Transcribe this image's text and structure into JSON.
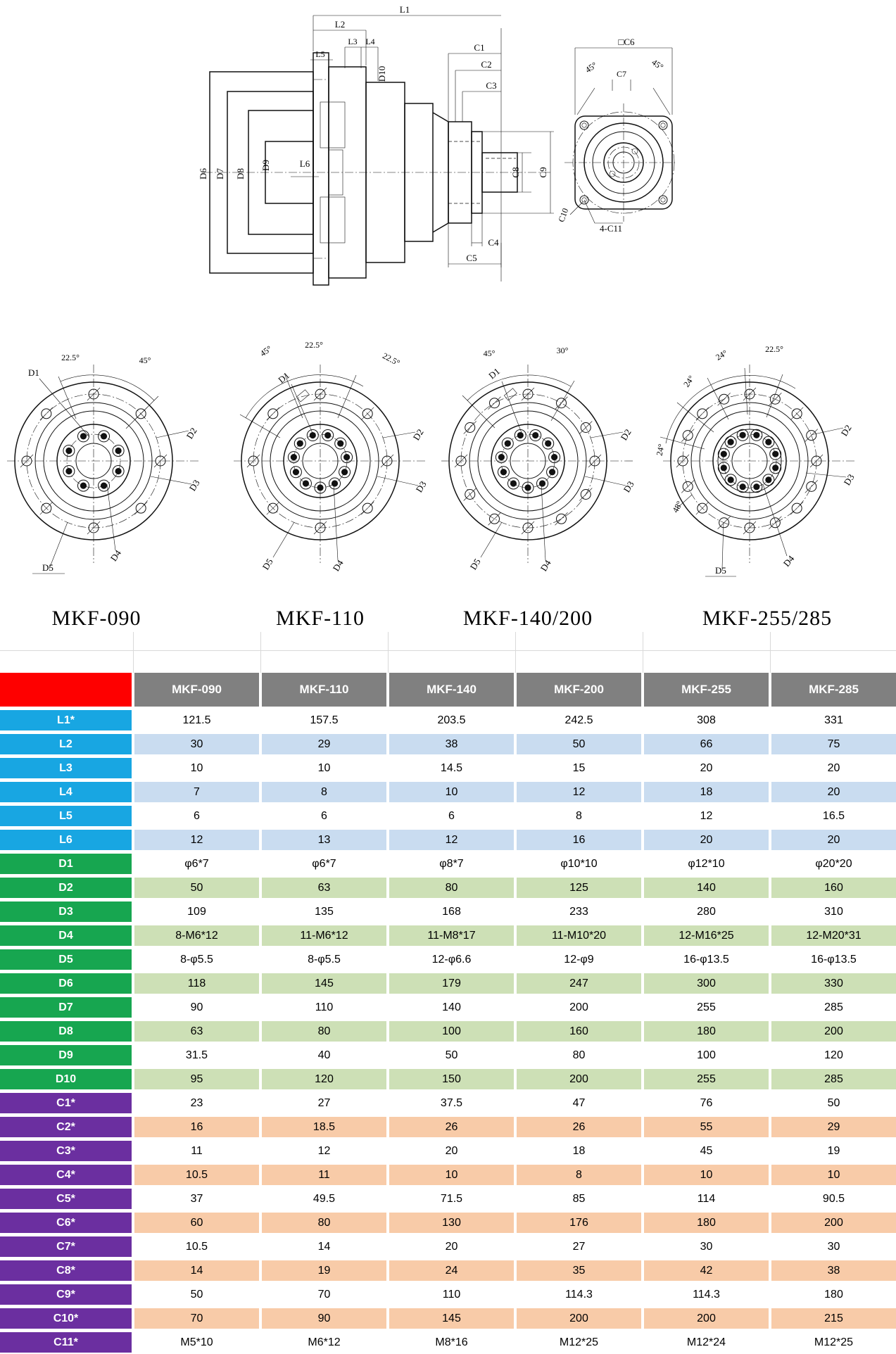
{
  "drawings": {
    "side": {
      "L1": "L1",
      "L2": "L2",
      "L3": "L3",
      "L4": "L4",
      "L5": "L5",
      "L6": "L6",
      "D6": "D6",
      "D7": "D7",
      "D8": "D8",
      "D9": "D9",
      "D10": "D10",
      "C1": "C1",
      "C2": "C2",
      "C3": "C3",
      "C4": "C4",
      "C5": "C5",
      "C8": "C8",
      "C9": "C9"
    },
    "front_small": {
      "C6": "□C6",
      "angle_left": "45°",
      "angle_right": "45°",
      "C7": "C7",
      "C10": "C10",
      "C11": "4-C11"
    },
    "views": [
      {
        "name": "MKF-090",
        "angles": [
          "22.5°",
          "45°"
        ],
        "labels": [
          "D1",
          "D2",
          "D3",
          "D4",
          "D5"
        ],
        "outer_holes": 8,
        "inner_holes": 8
      },
      {
        "name": "MKF-110",
        "angles": [
          "45°",
          "22.5°",
          "22.5°"
        ],
        "labels": [
          "D1",
          "D2",
          "D3",
          "D4",
          "D5"
        ],
        "outer_holes": 8,
        "inner_holes": 11
      },
      {
        "name": "MKF-140/200",
        "angles": [
          "45°",
          "30°"
        ],
        "labels": [
          "D1",
          "D2",
          "D3",
          "D4",
          "D5"
        ],
        "outer_holes": 12,
        "inner_holes": 11
      },
      {
        "name": "MKF-255/285",
        "angles": [
          "24°",
          "24°",
          "22.5°",
          "24°",
          "48°"
        ],
        "labels": [
          "D1",
          "D2",
          "D3",
          "D4",
          "D5"
        ],
        "outer_holes": 16,
        "inner_holes": 12
      }
    ]
  },
  "table": {
    "columns": [
      "MKF-090",
      "MKF-110",
      "MKF-140",
      "MKF-200",
      "MKF-255",
      "MKF-285"
    ],
    "colors": {
      "header_bg": "#808080",
      "header_text": "#ffffff",
      "corner_bg": "#FE0000",
      "l_label_bg": "#18A6E2",
      "l_tint": "#C9DCF0",
      "d_label_bg": "#17A650",
      "d_tint": "#CDE0B6",
      "c_label_bg": "#6B2FA0",
      "c_tint": "#F8CBA8"
    },
    "rows": [
      {
        "label": "L1*",
        "values": [
          "121.5",
          "157.5",
          "203.5",
          "242.5",
          "308",
          "331"
        ]
      },
      {
        "label": "L2",
        "values": [
          "30",
          "29",
          "38",
          "50",
          "66",
          "75"
        ]
      },
      {
        "label": "L3",
        "values": [
          "10",
          "10",
          "14.5",
          "15",
          "20",
          "20"
        ]
      },
      {
        "label": "L4",
        "values": [
          "7",
          "8",
          "10",
          "12",
          "18",
          "20"
        ]
      },
      {
        "label": "L5",
        "values": [
          "6",
          "6",
          "6",
          "8",
          "12",
          "16.5"
        ]
      },
      {
        "label": "L6",
        "values": [
          "12",
          "13",
          "12",
          "16",
          "20",
          "20"
        ]
      },
      {
        "label": "D1",
        "values": [
          "φ6*7",
          "φ6*7",
          "φ8*7",
          "φ10*10",
          "φ12*10",
          "φ20*20"
        ]
      },
      {
        "label": "D2",
        "values": [
          "50",
          "63",
          "80",
          "125",
          "140",
          "160"
        ]
      },
      {
        "label": "D3",
        "values": [
          "109",
          "135",
          "168",
          "233",
          "280",
          "310"
        ]
      },
      {
        "label": "D4",
        "values": [
          "8-M6*12",
          "11-M6*12",
          "11-M8*17",
          "11-M10*20",
          "12-M16*25",
          "12-M20*31"
        ]
      },
      {
        "label": "D5",
        "values": [
          "8-φ5.5",
          "8-φ5.5",
          "12-φ6.6",
          "12-φ9",
          "16-φ13.5",
          "16-φ13.5"
        ]
      },
      {
        "label": "D6",
        "values": [
          "118",
          "145",
          "179",
          "247",
          "300",
          "330"
        ]
      },
      {
        "label": "D7",
        "values": [
          "90",
          "110",
          "140",
          "200",
          "255",
          "285"
        ]
      },
      {
        "label": "D8",
        "values": [
          "63",
          "80",
          "100",
          "160",
          "180",
          "200"
        ]
      },
      {
        "label": "D9",
        "values": [
          "31.5",
          "40",
          "50",
          "80",
          "100",
          "120"
        ]
      },
      {
        "label": "D10",
        "values": [
          "95",
          "120",
          "150",
          "200",
          "255",
          "285"
        ]
      },
      {
        "label": "C1*",
        "values": [
          "23",
          "27",
          "37.5",
          "47",
          "76",
          "50"
        ]
      },
      {
        "label": "C2*",
        "values": [
          "16",
          "18.5",
          "26",
          "26",
          "55",
          "29"
        ]
      },
      {
        "label": "C3*",
        "values": [
          "11",
          "12",
          "20",
          "18",
          "45",
          "19"
        ]
      },
      {
        "label": "C4*",
        "values": [
          "10.5",
          "11",
          "10",
          "8",
          "10",
          "10"
        ]
      },
      {
        "label": "C5*",
        "values": [
          "37",
          "49.5",
          "71.5",
          "85",
          "114",
          "90.5"
        ]
      },
      {
        "label": "C6*",
        "values": [
          "60",
          "80",
          "130",
          "176",
          "180",
          "200"
        ]
      },
      {
        "label": "C7*",
        "values": [
          "10.5",
          "14",
          "20",
          "27",
          "30",
          "30"
        ]
      },
      {
        "label": "C8*",
        "values": [
          "14",
          "19",
          "24",
          "35",
          "42",
          "38"
        ]
      },
      {
        "label": "C9*",
        "values": [
          "50",
          "70",
          "110",
          "114.3",
          "114.3",
          "180"
        ]
      },
      {
        "label": "C10*",
        "values": [
          "70",
          "90",
          "145",
          "200",
          "200",
          "215"
        ]
      },
      {
        "label": "C11*",
        "values": [
          "M5*10",
          "M6*12",
          "M8*16",
          "M12*25",
          "M12*24",
          "M12*25"
        ]
      }
    ]
  }
}
